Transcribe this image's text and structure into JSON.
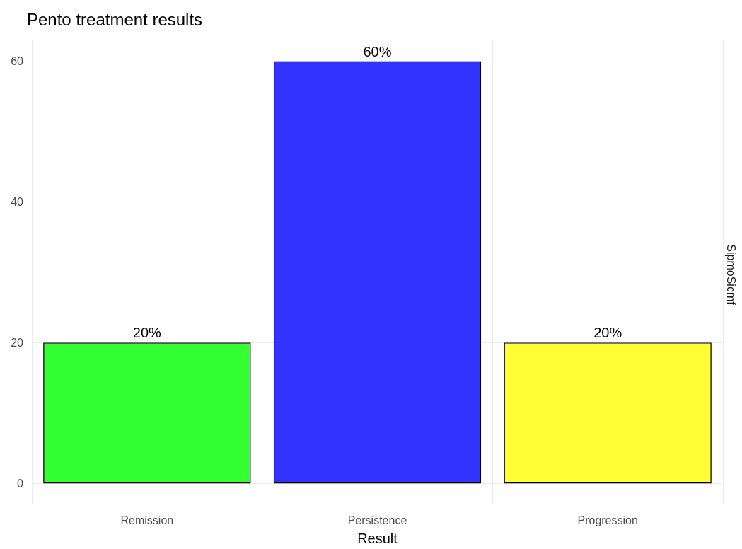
{
  "chart_data": {
    "type": "bar",
    "title": "Pento treatment results",
    "xlabel": "Result",
    "annotations": [
      "SipmoSicmf"
    ],
    "categories": [
      "Remission",
      "Persistence",
      "Progression"
    ],
    "values": [
      20,
      60,
      20
    ],
    "colors": [
      "#33ff33",
      "#3333ff",
      "#ffff33"
    ],
    "value_labels": [
      "20%",
      "60%",
      "20%"
    ],
    "ylim": [
      -3,
      63
    ],
    "yticks": [
      0,
      20,
      40,
      60
    ],
    "grid": true
  }
}
